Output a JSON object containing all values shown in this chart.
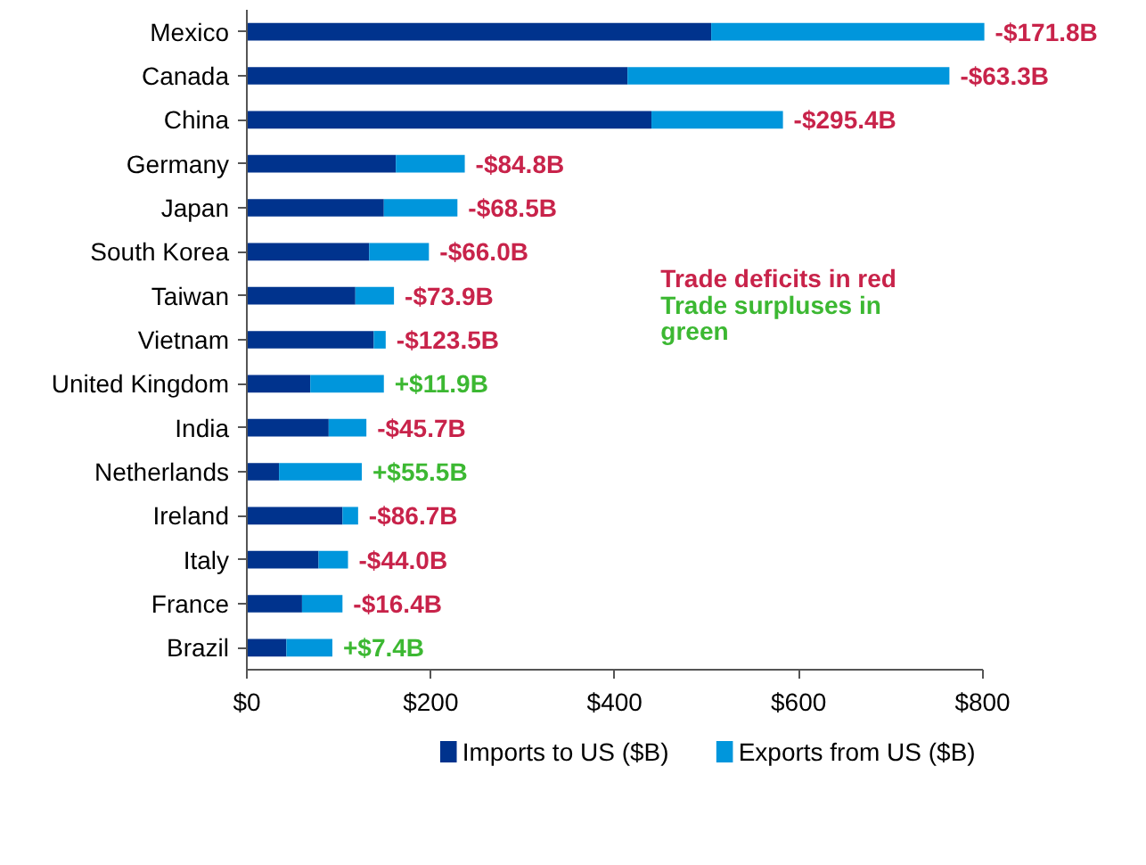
{
  "chart_data": {
    "type": "bar",
    "orientation": "horizontal",
    "stacked": true,
    "categories": [
      "Mexico",
      "Canada",
      "China",
      "Germany",
      "Japan",
      "South Korea",
      "Taiwan",
      "Vietnam",
      "United Kingdom",
      "India",
      "Netherlands",
      "Ireland",
      "Italy",
      "France",
      "Brazil"
    ],
    "series": [
      {
        "name": "Imports to US ($B)",
        "color": "#00338d",
        "values": [
          505,
          414,
          440,
          162,
          149,
          133,
          118,
          138,
          69,
          89,
          35,
          104,
          78,
          60,
          43
        ]
      },
      {
        "name": "Exports from US ($B)",
        "color": "#0096dc",
        "values": [
          297,
          350,
          143,
          75,
          80,
          65,
          42,
          13,
          80,
          41,
          90,
          17,
          32,
          44,
          50
        ]
      }
    ],
    "xlim": [
      0,
      800
    ],
    "xticks": [
      {
        "value": 0,
        "label": "$0"
      },
      {
        "value": 200,
        "label": "$200"
      },
      {
        "value": 400,
        "label": "$400"
      },
      {
        "value": 600,
        "label": "$600"
      },
      {
        "value": 800,
        "label": "$800"
      }
    ],
    "annotations": [
      {
        "text": "-$171.8B",
        "x": 802,
        "y": "Mexico"
      },
      {
        "text": "-$63.3B",
        "x": 764,
        "y": "Canada"
      },
      {
        "text": "-$295.4B",
        "x": 583,
        "y": "China"
      },
      {
        "text": "-$84.8B",
        "x": 237,
        "y": "Germany"
      },
      {
        "text": "-$68.5B",
        "x": 229,
        "y": "Japan"
      },
      {
        "text": "-$66.0B",
        "x": 198,
        "y": "South Korea"
      },
      {
        "text": "-$73.9B",
        "x": 160,
        "y": "Taiwan"
      },
      {
        "text": "-$123.5B",
        "x": 151,
        "y": "Vietnam"
      },
      {
        "text": "+$11.9B",
        "x": 149,
        "y": "United Kingdom"
      },
      {
        "text": "-$45.7B",
        "x": 130,
        "y": "India"
      },
      {
        "text": "+$55.5B",
        "x": 125,
        "y": "Netherlands"
      },
      {
        "text": "-$86.7B",
        "x": 121,
        "y": "Ireland"
      },
      {
        "text": "-$44.0B",
        "x": 110,
        "y": "Italy"
      },
      {
        "text": "-$16.4B",
        "x": 104,
        "y": "France"
      },
      {
        "text": "+$7.4B",
        "x": 93,
        "y": "Brazil"
      },
      "Trade deficits in red",
      "Trade surpluses in\ngreen"
    ],
    "legend": "bottom"
  }
}
